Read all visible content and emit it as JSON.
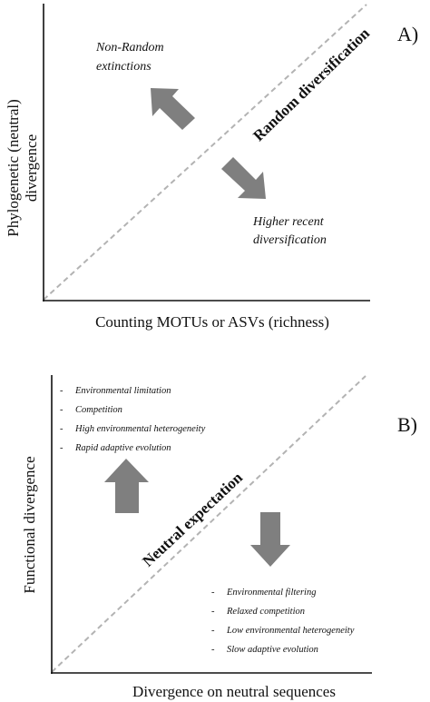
{
  "panel_a": {
    "tag": "A)",
    "x_axis_title": "Counting MOTUs or ASVs (richness)",
    "y_axis_title_line1": "Phylogenetic (neutral)",
    "y_axis_title_line2": "divergence",
    "diagonal_label": "Random diversification",
    "upper_note_line1": "Non-Random",
    "upper_note_line2": "extinctions",
    "lower_note_line1": "Higher recent",
    "lower_note_line2": "diversification"
  },
  "panel_b": {
    "tag": "B)",
    "x_axis_title": "Divergence on neutral sequences",
    "y_axis_title": "Functional divergence",
    "diagonal_label": "Neutral expectation",
    "upper_list": [
      "Environmental limitation",
      "Competition",
      "High environmental heterogeneity",
      "Rapid adaptive evolution"
    ],
    "lower_list": [
      "Environmental filtering",
      "Relaxed competition",
      "Low environmental heterogeneity",
      "Slow adaptive evolution"
    ],
    "bullet": "-"
  },
  "colors": {
    "axis": "#111111",
    "arrow": "#7f7f7f",
    "diagonal": "#b3b3b3"
  }
}
